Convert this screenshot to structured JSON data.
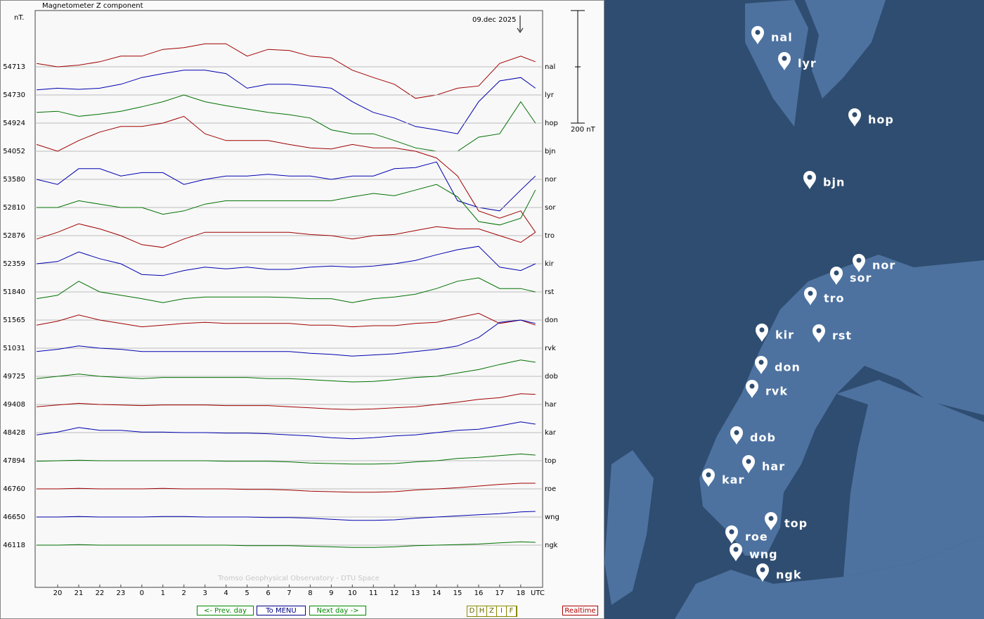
{
  "chart_data": {
    "type": "line",
    "title": "Magnetometer Z component",
    "y_unit": "nT.",
    "date": "09.dec 2025",
    "x_unit": "UTC",
    "credit": "Tromso Geophysical Observatory - DTU Space",
    "grid": true,
    "x": [
      19,
      20,
      21,
      22,
      23,
      24,
      25,
      26,
      27,
      28,
      29,
      30,
      31,
      32,
      33,
      34,
      35,
      36,
      37,
      38,
      39,
      40,
      41,
      42,
      42.7
    ],
    "xlim": [
      18.93,
      43.04
    ],
    "xticks": [
      20,
      21,
      22,
      23,
      {
        "value": 24,
        "label": "0"
      },
      {
        "value": 25,
        "label": "1"
      },
      {
        "value": 26,
        "label": "2"
      },
      {
        "value": 27,
        "label": "3"
      },
      {
        "value": 28,
        "label": "4"
      },
      {
        "value": 29,
        "label": "5"
      },
      {
        "value": 30,
        "label": "6"
      },
      {
        "value": 31,
        "label": "7"
      },
      {
        "value": 32,
        "label": "8"
      },
      {
        "value": 33,
        "label": "9"
      },
      {
        "value": 34,
        "label": "10"
      },
      {
        "value": 35,
        "label": "11"
      },
      {
        "value": 36,
        "label": "12"
      },
      {
        "value": 37,
        "label": "13"
      },
      {
        "value": 38,
        "label": "14"
      },
      {
        "value": 39,
        "label": "15"
      },
      {
        "value": 40,
        "label": "16"
      },
      {
        "value": 41,
        "label": "17"
      },
      {
        "value": 42,
        "label": "18"
      }
    ],
    "scale_bar": {
      "value": 200,
      "label": "200 nT"
    },
    "series": [
      {
        "name": "nal",
        "color": "#a00000",
        "baseline": 54713,
        "values": [
          6,
          0,
          3,
          9,
          19,
          19,
          31,
          34,
          41,
          41,
          19,
          31,
          29,
          19,
          16,
          -6,
          -19,
          -31,
          -56,
          -50,
          -38,
          -34,
          6,
          19,
          9
        ]
      },
      {
        "name": "lyr",
        "color": "#0000b0",
        "baseline": 54730,
        "values": [
          9,
          12,
          10,
          12,
          19,
          31,
          38,
          44,
          44,
          38,
          12,
          19,
          19,
          16,
          12,
          -12,
          -31,
          -41,
          -56,
          -62,
          -69,
          -12,
          25,
          31,
          12
        ]
      },
      {
        "name": "hop",
        "color": "#007000",
        "baseline": 54924,
        "values": [
          19,
          21,
          12,
          16,
          21,
          29,
          38,
          50,
          38,
          31,
          25,
          19,
          15,
          9,
          -12,
          -19,
          -19,
          -31,
          -44,
          -50,
          -50,
          -25,
          -19,
          38,
          0
        ]
      },
      {
        "name": "bjn",
        "color": "#a00000",
        "baseline": 54052,
        "values": [
          12,
          0,
          19,
          34,
          44,
          44,
          50,
          62,
          31,
          19,
          19,
          19,
          12,
          6,
          4,
          12,
          6,
          6,
          0,
          -12,
          -44,
          -106,
          -119,
          -106,
          -144
        ]
      },
      {
        "name": "nor",
        "color": "#0000b0",
        "baseline": 53580,
        "values": [
          0,
          -9,
          19,
          19,
          6,
          12,
          12,
          -9,
          0,
          6,
          6,
          9,
          6,
          6,
          0,
          6,
          6,
          19,
          21,
          31,
          -38,
          -50,
          -56,
          -19,
          6
        ]
      },
      {
        "name": "sor",
        "color": "#007000",
        "baseline": 52810,
        "values": [
          0,
          0,
          12,
          6,
          0,
          0,
          -12,
          -6,
          6,
          12,
          12,
          12,
          12,
          12,
          12,
          19,
          25,
          21,
          31,
          41,
          19,
          -25,
          -31,
          -19,
          31
        ]
      },
      {
        "name": "tro",
        "color": "#a00000",
        "baseline": 52876,
        "values": [
          -6,
          6,
          21,
          12,
          0,
          -16,
          -21,
          -6,
          6,
          6,
          6,
          6,
          6,
          2,
          0,
          -6,
          0,
          2,
          9,
          16,
          12,
          12,
          0,
          -12,
          6
        ]
      },
      {
        "name": "kir",
        "color": "#0000b0",
        "baseline": 52359,
        "values": [
          0,
          4,
          21,
          9,
          0,
          -19,
          -21,
          -12,
          -6,
          -9,
          -6,
          -10,
          -10,
          -6,
          -4,
          -6,
          -4,
          0,
          6,
          16,
          25,
          31,
          -6,
          -12,
          0
        ]
      },
      {
        "name": "rst",
        "color": "#007000",
        "baseline": 51840,
        "values": [
          -12,
          -6,
          19,
          0,
          -6,
          -12,
          -19,
          -12,
          -9,
          -9,
          -9,
          -9,
          -10,
          -12,
          -12,
          -19,
          -12,
          -9,
          -4,
          6,
          19,
          25,
          6,
          6,
          0
        ]
      },
      {
        "name": "don",
        "color": "#a00000",
        "baseline": 51565,
        "values": [
          -9,
          -2,
          9,
          0,
          -6,
          -12,
          -9,
          -6,
          -4,
          -6,
          -6,
          -6,
          -6,
          -9,
          -9,
          -12,
          -10,
          -10,
          -6,
          -4,
          4,
          12,
          -6,
          0,
          -9
        ]
      },
      {
        "name": "rvk",
        "color": "#0000b0",
        "baseline": 51031,
        "values": [
          -6,
          -2,
          4,
          0,
          -2,
          -6,
          -6,
          -6,
          -6,
          -6,
          -6,
          -6,
          -6,
          -9,
          -11,
          -14,
          -12,
          -10,
          -6,
          -2,
          4,
          19,
          46,
          50,
          44
        ]
      },
      {
        "name": "dob",
        "color": "#007000",
        "baseline": 49725,
        "values": [
          -4,
          0,
          4,
          0,
          -2,
          -4,
          -2,
          -2,
          -2,
          -2,
          -2,
          -4,
          -4,
          -6,
          -8,
          -10,
          -9,
          -6,
          -2,
          0,
          6,
          12,
          21,
          29,
          25
        ]
      },
      {
        "name": "har",
        "color": "#a00000",
        "baseline": 49408,
        "values": [
          -4,
          -1,
          2,
          0,
          -1,
          -2,
          -1,
          -1,
          -1,
          -2,
          -2,
          -2,
          -4,
          -6,
          -8,
          -9,
          -8,
          -6,
          -4,
          0,
          4,
          9,
          12,
          19,
          18
        ]
      },
      {
        "name": "kar",
        "color": "#0000b0",
        "baseline": 48428,
        "values": [
          -4,
          1,
          9,
          4,
          4,
          1,
          1,
          0,
          0,
          -1,
          -1,
          -2,
          -4,
          -6,
          -9,
          -11,
          -9,
          -6,
          -4,
          0,
          4,
          6,
          12,
          19,
          15
        ]
      },
      {
        "name": "top",
        "color": "#007000",
        "baseline": 47894,
        "values": [
          -1,
          0,
          1,
          0,
          0,
          0,
          0,
          0,
          0,
          -1,
          -1,
          -1,
          -2,
          -4,
          -5,
          -6,
          -6,
          -5,
          -2,
          0,
          4,
          6,
          9,
          12,
          10
        ]
      },
      {
        "name": "roe",
        "color": "#a00000",
        "baseline": 46760,
        "values": [
          0,
          0,
          1,
          0,
          0,
          0,
          1,
          0,
          0,
          0,
          -1,
          -1,
          -2,
          -4,
          -5,
          -6,
          -6,
          -5,
          -2,
          0,
          2,
          5,
          8,
          10,
          10
        ]
      },
      {
        "name": "wng",
        "color": "#0000b0",
        "baseline": 46650,
        "values": [
          0,
          0,
          1,
          0,
          0,
          0,
          1,
          1,
          0,
          0,
          0,
          -1,
          -1,
          -2,
          -4,
          -6,
          -6,
          -5,
          -2,
          0,
          2,
          4,
          6,
          9,
          10
        ]
      },
      {
        "name": "ngk",
        "color": "#007000",
        "baseline": 46118,
        "values": [
          0,
          0,
          1,
          0,
          0,
          0,
          0,
          0,
          0,
          0,
          -1,
          -1,
          -1,
          -2,
          -3,
          -4,
          -4,
          -3,
          -1,
          0,
          1,
          2,
          4,
          6,
          5
        ]
      }
    ]
  },
  "nav": {
    "prev": "<- Prev. day",
    "menu": "To MENU",
    "next": "Next day ->",
    "components": [
      "D",
      "H",
      "Z",
      "I",
      "F"
    ],
    "realtime": "Realtime"
  }
}
